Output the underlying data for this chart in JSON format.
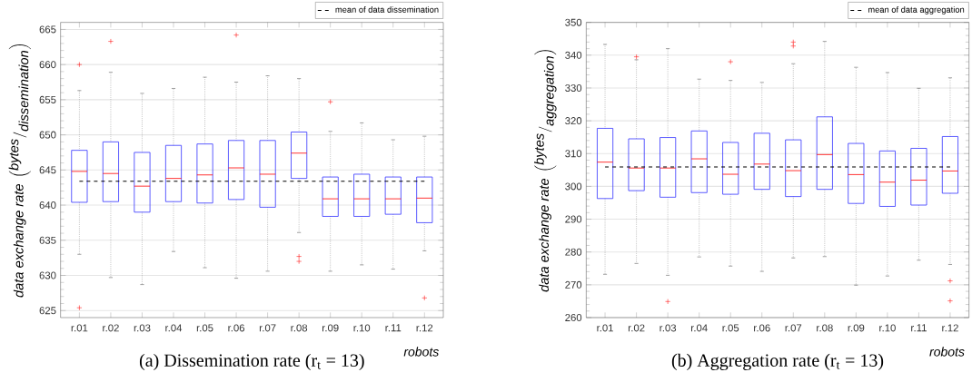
{
  "chart_data": [
    {
      "type": "box",
      "title": "(a) Dissemination rate (r$_{t}$ = 13)",
      "xlabel": "robots",
      "ylabel": "\\textit{data exchange rate}\\ \\left({}^{\\textit{bytes}}/_{\\textit{dissemination}}\\right)",
      "categories": [
        "r.01",
        "r.02",
        "r.03",
        "r.04",
        "r.05",
        "r.06",
        "r.07",
        "r.08",
        "r.09",
        "r.10",
        "r.11",
        "r.12"
      ],
      "series": [
        {
          "color": "#3333ff",
          "boxes": [
            {
              "low": 633.0,
              "q1": 640.4,
              "median": 644.8,
              "q3": 647.8,
              "high": 656.3,
              "outliers": [
                660.0,
                625.4
              ]
            },
            {
              "low": 629.7,
              "q1": 640.5,
              "median": 644.5,
              "q3": 649.0,
              "high": 658.9,
              "outliers": [
                663.3
              ]
            },
            {
              "low": 628.7,
              "q1": 639.0,
              "median": 642.7,
              "q3": 647.5,
              "high": 655.9
            },
            {
              "low": 633.4,
              "q1": 640.5,
              "median": 643.8,
              "q3": 648.5,
              "high": 656.6
            },
            {
              "low": 631.1,
              "q1": 640.3,
              "median": 644.3,
              "q3": 648.7,
              "high": 658.2
            },
            {
              "low": 629.6,
              "q1": 640.8,
              "median": 645.3,
              "q3": 649.2,
              "high": 657.5,
              "outliers": [
                664.2
              ]
            },
            {
              "low": 630.6,
              "q1": 639.7,
              "median": 644.4,
              "q3": 649.2,
              "high": 658.4
            },
            {
              "low": 636.1,
              "q1": 643.8,
              "median": 647.4,
              "q3": 650.4,
              "high": 658.0,
              "outliers": [
                632.7,
                632.0
              ]
            },
            {
              "low": 630.6,
              "q1": 638.4,
              "median": 640.9,
              "q3": 644.0,
              "high": 650.5,
              "outliers": [
                654.7
              ]
            },
            {
              "low": 631.5,
              "q1": 638.4,
              "median": 640.9,
              "q3": 644.4,
              "high": 651.7
            },
            {
              "low": 630.9,
              "q1": 638.7,
              "median": 640.9,
              "q3": 644.0,
              "high": 649.3
            },
            {
              "low": 633.5,
              "q1": 637.5,
              "median": 641.0,
              "q3": 644.0,
              "high": 649.8,
              "outliers": [
                626.8
              ]
            }
          ]
        }
      ],
      "ref_lines": [
        {
          "axis": "y",
          "value": 643.4,
          "label": "mean of data dissemination",
          "color": "#000000",
          "line_style": "dashed"
        }
      ],
      "ylim": [
        624,
        666
      ],
      "yticks": [
        625,
        630,
        635,
        640,
        645,
        650,
        655,
        660,
        665
      ],
      "grid": "y",
      "legend": "top right",
      "marker": "cross"
    },
    {
      "type": "box",
      "title": "(b) Aggregation rate (r$_{t}$ = 13)",
      "xlabel": "robots",
      "ylabel": "\\textit{data exchange rate}\\ \\left({}^{\\textit{bytes}}/_{\\textit{aggregation}}\\right)",
      "categories": [
        "r.01",
        "r.02",
        "r.03",
        "r.04",
        "r.05",
        "r.06",
        "r.07",
        "r.08",
        "r.09",
        "r.10",
        "r.11",
        "r.12"
      ],
      "series": [
        {
          "color": "#3333ff",
          "boxes": [
            {
              "low": 273.2,
              "q1": 296.3,
              "median": 307.4,
              "q3": 317.7,
              "high": 343.3
            },
            {
              "low": 276.5,
              "q1": 298.7,
              "median": 305.6,
              "q3": 314.5,
              "high": 338.6,
              "outliers": [
                339.5
              ]
            },
            {
              "low": 272.9,
              "q1": 296.7,
              "median": 305.6,
              "q3": 314.9,
              "high": 342.0,
              "outliers": [
                264.9
              ]
            },
            {
              "low": 278.5,
              "q1": 298.1,
              "median": 308.4,
              "q3": 316.9,
              "high": 332.7
            },
            {
              "low": 275.7,
              "q1": 297.6,
              "median": 303.7,
              "q3": 313.4,
              "high": 332.3,
              "outliers": [
                338.0
              ]
            },
            {
              "low": 274.1,
              "q1": 299.1,
              "median": 306.8,
              "q3": 316.2,
              "high": 331.7
            },
            {
              "low": 278.2,
              "q1": 296.9,
              "median": 304.8,
              "q3": 314.2,
              "high": 337.4,
              "outliers": [
                344.0,
                342.8
              ]
            },
            {
              "low": 278.6,
              "q1": 299.1,
              "median": 309.7,
              "q3": 321.2,
              "high": 344.2
            },
            {
              "low": 269.9,
              "q1": 294.8,
              "median": 303.6,
              "q3": 313.1,
              "high": 336.3
            },
            {
              "low": 272.7,
              "q1": 293.9,
              "median": 301.3,
              "q3": 310.8,
              "high": 334.7
            },
            {
              "low": 277.5,
              "q1": 294.3,
              "median": 301.9,
              "q3": 311.6,
              "high": 329.9
            },
            {
              "low": 276.2,
              "q1": 297.9,
              "median": 304.7,
              "q3": 315.2,
              "high": 333.1,
              "outliers": [
                271.2,
                265.1
              ]
            }
          ]
        }
      ],
      "ref_lines": [
        {
          "axis": "y",
          "value": 305.9,
          "label": "mean of data aggregation",
          "color": "#000000",
          "line_style": "dashed"
        }
      ],
      "ylim": [
        260,
        350
      ],
      "yticks": [
        260,
        270,
        280,
        290,
        300,
        310,
        320,
        330,
        340,
        350
      ],
      "grid": "y",
      "legend": "top right",
      "marker": "cross"
    }
  ]
}
